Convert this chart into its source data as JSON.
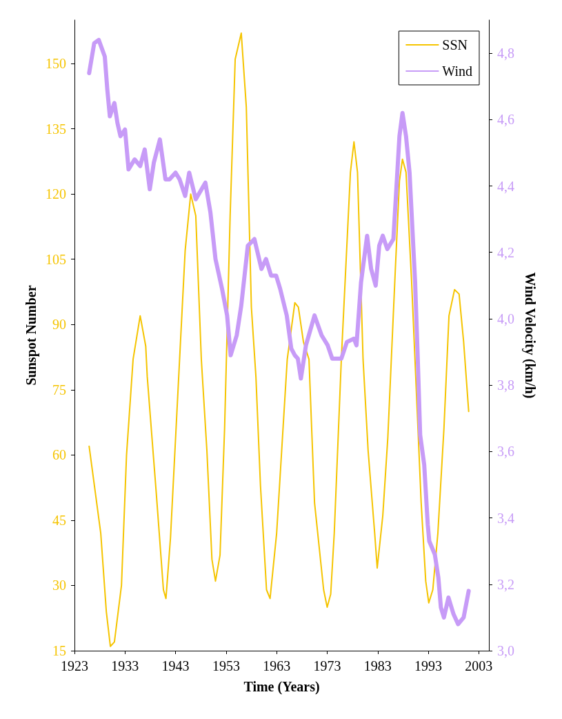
{
  "chart_data": {
    "type": "line",
    "xlabel": "Time (Years)",
    "ylabel": "Sunspot Number",
    "y2label": "Wind Velocity (km/h)",
    "xlim": [
      1923,
      2005
    ],
    "xticks": [
      1923,
      1933,
      1943,
      1953,
      1963,
      1973,
      1983,
      1993,
      2003
    ],
    "ylim": [
      15,
      160
    ],
    "yticks": [
      15,
      30,
      45,
      60,
      75,
      90,
      105,
      120,
      135,
      150
    ],
    "y2lim": [
      3.0,
      4.9
    ],
    "y2ticks": [
      {
        "value": 3.0,
        "label": "3,0"
      },
      {
        "value": 3.2,
        "label": "3,2"
      },
      {
        "value": 3.4,
        "label": "3,4"
      },
      {
        "value": 3.6,
        "label": "3,6"
      },
      {
        "value": 3.8,
        "label": "3,8"
      },
      {
        "value": 4.0,
        "label": "4,0"
      },
      {
        "value": 4.2,
        "label": "4,2"
      },
      {
        "value": 4.4,
        "label": "4,4"
      },
      {
        "value": 4.6,
        "label": "4,6"
      },
      {
        "value": 4.8,
        "label": "4,8"
      }
    ],
    "grid": false,
    "legend": "top right",
    "marker": "none",
    "line_style": "solid",
    "series": [
      {
        "name": "SSN",
        "color": "#f5c400",
        "x": [
          1925.9,
          1928.2,
          1929.3,
          1930.1,
          1930.9,
          1932.3,
          1933.3,
          1934.6,
          1936.0,
          1937.1,
          1937.4,
          1939.2,
          1940.6,
          1941.1,
          1942.0,
          1943.8,
          1944.9,
          1946.0,
          1947.0,
          1948.1,
          1949.2,
          1950.2,
          1950.9,
          1951.8,
          1952.7,
          1953.8,
          1954.8,
          1956.0,
          1957.0,
          1958.0,
          1958.9,
          1959.8,
          1961.0,
          1961.7,
          1963.0,
          1965.1,
          1966.6,
          1967.3,
          1968.3,
          1969.4,
          1970.5,
          1972.3,
          1973.0,
          1973.7,
          1974.4,
          1975.8,
          1977.6,
          1978.3,
          1979.0,
          1980.1,
          1981.1,
          1982.4,
          1982.9,
          1984.0,
          1985.0,
          1986.5,
          1987.3,
          1987.9,
          1988.6,
          1989.7,
          1991.6,
          1992.5,
          1993.1,
          1993.9,
          1994.9,
          1996.1,
          1997.1,
          1998.2,
          1999.1,
          2000.0,
          2001.0
        ],
        "values": [
          62,
          42,
          24,
          16,
          17,
          30,
          60,
          82,
          92,
          85,
          78,
          51,
          29,
          27,
          41,
          82,
          107,
          120,
          115,
          82,
          61,
          36,
          31,
          37,
          66,
          115,
          151,
          157,
          140,
          94,
          78,
          53,
          29,
          27,
          42,
          82,
          95,
          94,
          86,
          82,
          49,
          29,
          25,
          28,
          42,
          82,
          125,
          132,
          125,
          82,
          61,
          42,
          34,
          46,
          64,
          103,
          123,
          128,
          125,
          100,
          49,
          31,
          26,
          29,
          42,
          66,
          92,
          98,
          97,
          86,
          70
        ]
      },
      {
        "name": "Wind",
        "color": "#c79bf7",
        "axis": "y2",
        "x": [
          1925.9,
          1926.9,
          1927.8,
          1929.0,
          1929.5,
          1930.0,
          1930.9,
          1931.5,
          1932.1,
          1933.0,
          1933.7,
          1934.9,
          1936.0,
          1936.9,
          1937.9,
          1938.7,
          1939.9,
          1941.0,
          1941.8,
          1943.0,
          1943.8,
          1944.9,
          1945.7,
          1947.0,
          1948.9,
          1949.9,
          1950.9,
          1952.2,
          1953.2,
          1953.9,
          1955.1,
          1956.0,
          1957.3,
          1958.6,
          1960.0,
          1960.9,
          1961.9,
          1962.9,
          1963.7,
          1965.0,
          1965.9,
          1966.6,
          1967.2,
          1967.8,
          1968.8,
          1970.5,
          1971.9,
          1973.1,
          1974.0,
          1975.1,
          1975.8,
          1976.9,
          1978.3,
          1978.8,
          1979.7,
          1980.9,
          1981.7,
          1982.6,
          1983.3,
          1984.0,
          1984.9,
          1986.1,
          1986.8,
          1987.3,
          1987.9,
          1988.6,
          1989.3,
          1990.4,
          1990.9,
          1991.4,
          1992.2,
          1992.9,
          1993.2,
          1994.3,
          1995.0,
          1995.5,
          1996.1,
          1997.0,
          1998.0,
          1998.9,
          2000.0,
          2001.0
        ],
        "values": [
          4.74,
          4.83,
          4.84,
          4.79,
          4.69,
          4.61,
          4.65,
          4.59,
          4.55,
          4.57,
          4.45,
          4.48,
          4.46,
          4.51,
          4.39,
          4.47,
          4.54,
          4.42,
          4.42,
          4.44,
          4.42,
          4.37,
          4.44,
          4.36,
          4.41,
          4.32,
          4.18,
          4.09,
          4.01,
          3.89,
          3.95,
          4.04,
          4.22,
          4.24,
          4.15,
          4.18,
          4.13,
          4.13,
          4.09,
          4.01,
          3.91,
          3.89,
          3.88,
          3.82,
          3.92,
          4.01,
          3.95,
          3.92,
          3.88,
          3.88,
          3.88,
          3.93,
          3.94,
          3.92,
          4.11,
          4.25,
          4.15,
          4.1,
          4.22,
          4.25,
          4.21,
          4.24,
          4.42,
          4.55,
          4.62,
          4.55,
          4.44,
          4.11,
          3.89,
          3.65,
          3.56,
          3.38,
          3.33,
          3.29,
          3.22,
          3.13,
          3.1,
          3.16,
          3.11,
          3.08,
          3.1,
          3.18
        ]
      }
    ]
  }
}
